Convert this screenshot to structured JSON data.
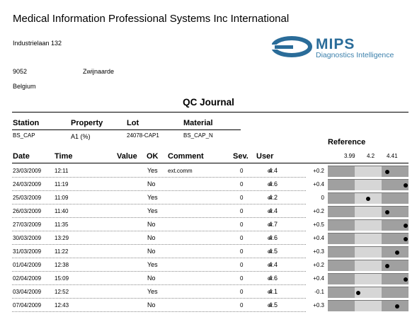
{
  "header": {
    "company": "Medical Information Professional Systems Inc International",
    "street": "Industrielaan 132",
    "postcode": "9052",
    "city": "Zwijnaarde",
    "country": "Belgium"
  },
  "logo": {
    "brand": "MIPS",
    "tagline": "Diagnostics Intelligence",
    "color": "#2a6c99"
  },
  "title": "QC Journal",
  "meta": {
    "labels": {
      "station": "Station",
      "property": "Property",
      "lot": "Lot",
      "material": "Material"
    },
    "values": {
      "station": "BS_CAP",
      "property": "A1 (%)",
      "lot": "24078-CAP1",
      "material": "BS_CAP_N"
    }
  },
  "reference": {
    "title": "Reference",
    "ticks": [
      "3.99",
      "4.2",
      "4.41"
    ],
    "min": 3.78,
    "max": 4.62
  },
  "columns": {
    "date": "Date",
    "time": "Time",
    "value": "Value",
    "ok": "OK",
    "comment": "Comment",
    "sev": "Sev.",
    "user": "User"
  },
  "rows": [
    {
      "date": "23/03/2009",
      "time": "12:11",
      "value": "4.4",
      "ok": "Yes",
      "comment": "ext.comm",
      "sev": "0",
      "user": "or",
      "dev": "+0.2",
      "num": 4.4
    },
    {
      "date": "24/03/2009",
      "time": "11:19",
      "value": "4.6",
      "ok": "No",
      "comment": "",
      "sev": "0",
      "user": "or",
      "dev": "+0.4",
      "num": 4.6
    },
    {
      "date": "25/03/2009",
      "time": "11:09",
      "value": "4.2",
      "ok": "Yes",
      "comment": "",
      "sev": "0",
      "user": "or",
      "dev": "0",
      "num": 4.2
    },
    {
      "date": "26/03/2009",
      "time": "11:40",
      "value": "4.4",
      "ok": "Yes",
      "comment": "",
      "sev": "0",
      "user": "or",
      "dev": "+0.2",
      "num": 4.4
    },
    {
      "date": "27/03/2009",
      "time": "11:35",
      "value": "4.7",
      "ok": "No",
      "comment": "",
      "sev": "0",
      "user": "or",
      "dev": "+0.5",
      "num": 4.7
    },
    {
      "date": "30/03/2009",
      "time": "13:29",
      "value": "4.6",
      "ok": "No",
      "comment": "",
      "sev": "0",
      "user": "or",
      "dev": "+0.4",
      "num": 4.6
    },
    {
      "date": "31/03/2009",
      "time": "11:22",
      "value": "4.5",
      "ok": "No",
      "comment": "",
      "sev": "0",
      "user": "or",
      "dev": "+0.3",
      "num": 4.5
    },
    {
      "date": "01/04/2009",
      "time": "12:38",
      "value": "4.4",
      "ok": "Yes",
      "comment": "",
      "sev": "0",
      "user": "or",
      "dev": "+0.2",
      "num": 4.4
    },
    {
      "date": "02/04/2009",
      "time": "15:09",
      "value": "4.6",
      "ok": "No",
      "comment": "",
      "sev": "0",
      "user": "or",
      "dev": "+0.4",
      "num": 4.6
    },
    {
      "date": "03/04/2009",
      "time": "12:52",
      "value": "4.1",
      "ok": "Yes",
      "comment": "",
      "sev": "0",
      "user": "or",
      "dev": "-0.1",
      "num": 4.1
    },
    {
      "date": "07/04/2009",
      "time": "12:43",
      "value": "4.5",
      "ok": "No",
      "comment": "",
      "sev": "0",
      "user": "or",
      "dev": "+0.3",
      "num": 4.5
    }
  ]
}
